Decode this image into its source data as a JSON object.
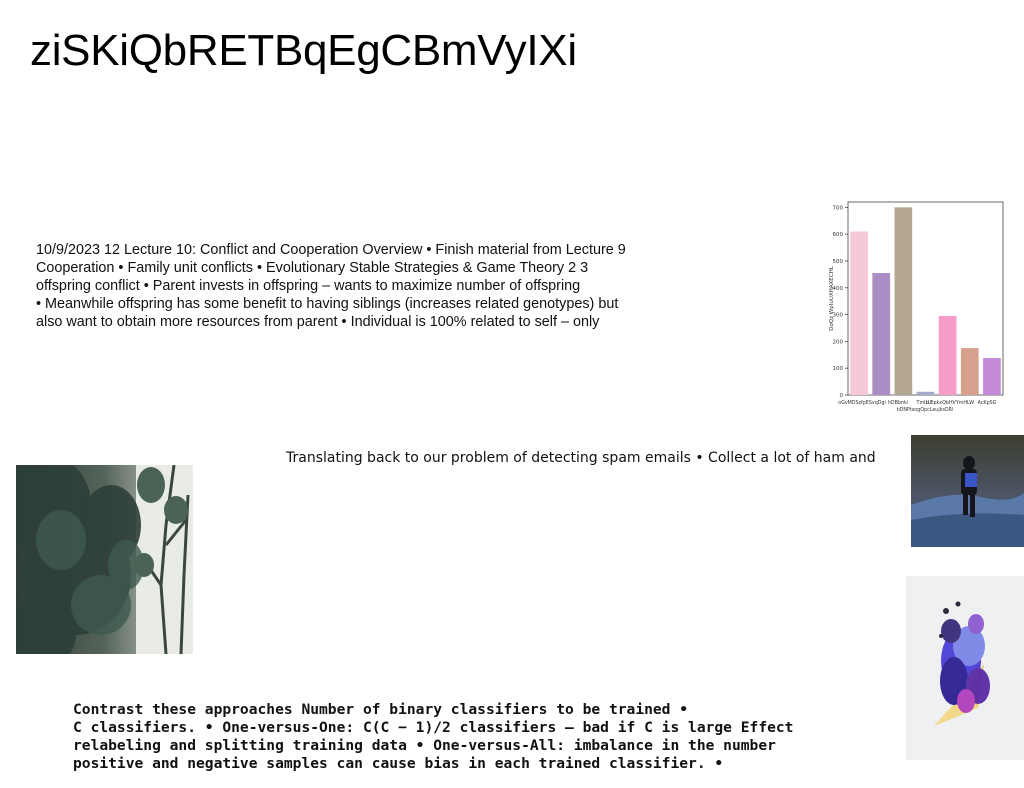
{
  "slide": {
    "title": "ziSKiQbRETBqEgCBmVyIXi",
    "text_block_1": [
      "10/9/2023 12 Lecture 10: Conflict and Cooperation Overview • Finish material from Lecture 9",
      "Cooperation • Family unit conflicts • Evolutionary Stable Strategies & Game Theory 2 3",
      "offspring conflict • Parent invests in offspring – wants to maximize number of offspring",
      "• Meanwhile offspring has some benefit to having siblings (increases related genotypes) but",
      "also want to obtain more resources from parent • Individual is 100% related to self – only"
    ],
    "text_block_2": "Translating back to our problem of detecting spam emails • Collect a lot of ham and",
    "text_block_3": [
      "Contrast these approaches Number of binary classifiers to be trained •",
      "C classifiers. • One-versus-One: C(C − 1)/2 classifiers – bad if C is large Effect",
      "relabeling and splitting training data • One-versus-All: imbalance in the number",
      "positive and negative samples can cause bias in each trained classifier. •"
    ]
  },
  "images": {
    "forest": "forest-photo",
    "hiker": "hiker-photo",
    "art": "abstract-art-image"
  },
  "chart_data": {
    "type": "bar",
    "categories": [
      "oGvMDSzfpE",
      "SvqDgi",
      "hDBbnki",
      "TmlLU",
      "o EpkxQbh",
      "VYmHLW",
      "AcKpSG"
    ],
    "tick_labels_row1": [
      "oGvMDSzfpESvqDgi",
      "hDBbnki",
      "TmlLU",
      "o EpkxQbHVYmHLW",
      "AcKpSG"
    ],
    "tick_labels_row2": "hDNPtsogOpcLeujksDRl",
    "values": [
      610,
      455,
      700,
      12,
      295,
      175,
      138
    ],
    "colors": [
      "#f6c9d9",
      "#a98dc3",
      "#b4a891",
      "#a7a9cc",
      "#f59cc8",
      "#d7a08d",
      "#c48bd8"
    ],
    "ylabel": "DoQz WpIuUXHAXECHL",
    "yticks": [
      0,
      100,
      200,
      300,
      400,
      500,
      600,
      700
    ],
    "ylim": [
      0,
      720
    ],
    "grid": false
  }
}
